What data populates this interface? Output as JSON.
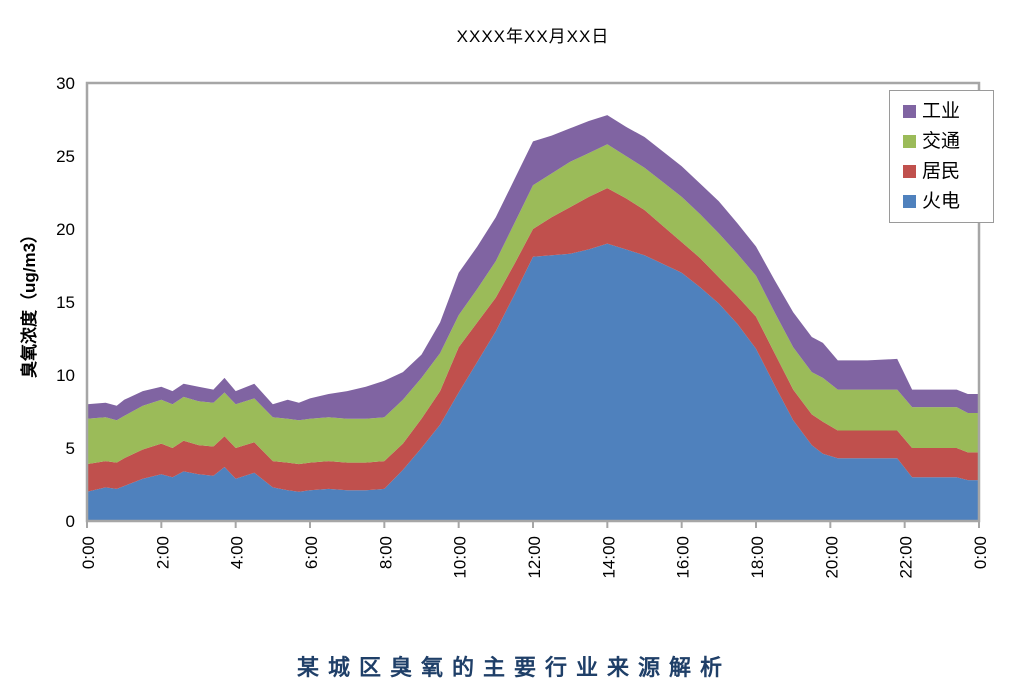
{
  "chart_data": {
    "type": "area",
    "stacked": true,
    "title": "XXXX年XX月XX日",
    "caption": "某城区臭氧的主要行业来源解析",
    "ylabel": "臭氧浓度（ug/m3）",
    "ylim": [
      0,
      30
    ],
    "y_ticks": [
      0,
      5,
      10,
      15,
      20,
      25,
      30
    ],
    "x_tick_hours": [
      0,
      2,
      4,
      6,
      8,
      10,
      12,
      14,
      16,
      18,
      20,
      22,
      24
    ],
    "x_tick_labels": [
      "0:00",
      "2:00",
      "4:00",
      "6:00",
      "8:00",
      "10:00",
      "12:00",
      "14:00",
      "16:00",
      "18:00",
      "20:00",
      "22:00",
      "0:00"
    ],
    "grid": false,
    "legend_position": "top-right",
    "legend_items": [
      "工业",
      "交通",
      "居民",
      "火电"
    ],
    "axis_color": "#A6A6A6",
    "caption_color": "#1F3F68",
    "x_hours": [
      0,
      0.5,
      0.8,
      1,
      1.5,
      2,
      2.3,
      2.6,
      3,
      3.4,
      3.7,
      4,
      4.5,
      5,
      5.4,
      5.7,
      6,
      6.5,
      7,
      7.5,
      8,
      8.5,
      9,
      9.5,
      10,
      10.5,
      11,
      11.5,
      12,
      12.5,
      13,
      13.5,
      14,
      14.5,
      15,
      15.5,
      16,
      16.5,
      17,
      17.5,
      18,
      18.5,
      19,
      19.5,
      19.8,
      20.2,
      21,
      21.8,
      22.2,
      23.4,
      23.7,
      24
    ],
    "series": [
      {
        "name": "火电",
        "color": "#4F81BD",
        "values": [
          2.0,
          2.3,
          2.2,
          2.4,
          2.9,
          3.2,
          3.0,
          3.4,
          3.2,
          3.1,
          3.7,
          2.9,
          3.3,
          2.3,
          2.1,
          2.0,
          2.1,
          2.2,
          2.1,
          2.1,
          2.2,
          3.5,
          5.0,
          6.6,
          8.8,
          10.9,
          13.0,
          15.5,
          18.1,
          18.2,
          18.3,
          18.6,
          19.0,
          18.6,
          18.2,
          17.6,
          17.0,
          16.0,
          14.9,
          13.5,
          11.8,
          9.3,
          6.9,
          5.2,
          4.6,
          4.3,
          4.3,
          4.3,
          3.0,
          3.0,
          2.8,
          2.8
        ]
      },
      {
        "name": "居民",
        "color": "#C0504D",
        "values": [
          1.9,
          1.8,
          1.8,
          1.9,
          2.0,
          2.1,
          2.0,
          2.1,
          2.0,
          2.0,
          2.1,
          2.1,
          2.1,
          1.8,
          1.9,
          1.9,
          1.9,
          1.9,
          1.9,
          1.9,
          1.9,
          1.8,
          2.0,
          2.3,
          3.1,
          2.7,
          2.3,
          2.1,
          1.9,
          2.6,
          3.2,
          3.6,
          3.8,
          3.5,
          3.1,
          2.6,
          2.1,
          2.0,
          1.8,
          1.9,
          2.2,
          2.2,
          2.1,
          2.1,
          2.2,
          1.9,
          1.9,
          1.9,
          2.0,
          2.0,
          1.9,
          1.9
        ]
      },
      {
        "name": "交通",
        "color": "#9BBB59",
        "values": [
          3.1,
          3.0,
          2.9,
          2.9,
          3.0,
          3.0,
          3.0,
          3.0,
          3.0,
          3.0,
          3.0,
          3.0,
          3.0,
          3.0,
          3.0,
          3.0,
          3.0,
          3.0,
          3.0,
          3.0,
          3.0,
          3.0,
          2.8,
          2.6,
          2.2,
          2.3,
          2.5,
          2.8,
          3.0,
          3.0,
          3.1,
          3.0,
          3.0,
          2.9,
          2.9,
          3.0,
          3.1,
          3.0,
          3.0,
          2.9,
          2.8,
          2.8,
          2.9,
          2.9,
          3.0,
          2.8,
          2.8,
          2.8,
          2.8,
          2.8,
          2.7,
          2.7
        ]
      },
      {
        "name": "工业",
        "color": "#8064A2",
        "values": [
          1.0,
          1.0,
          1.0,
          1.1,
          1.0,
          0.9,
          0.9,
          0.9,
          1.0,
          0.9,
          1.0,
          0.9,
          1.0,
          0.9,
          1.3,
          1.2,
          1.4,
          1.6,
          1.9,
          2.2,
          2.5,
          1.9,
          1.6,
          2.1,
          2.9,
          2.9,
          3.0,
          3.0,
          3.0,
          2.6,
          2.3,
          2.2,
          2.0,
          2.0,
          2.1,
          2.1,
          2.1,
          2.1,
          2.2,
          2.1,
          2.0,
          2.2,
          2.4,
          2.4,
          2.4,
          2.0,
          2.0,
          2.1,
          1.2,
          1.2,
          1.3,
          1.3
        ]
      }
    ]
  }
}
